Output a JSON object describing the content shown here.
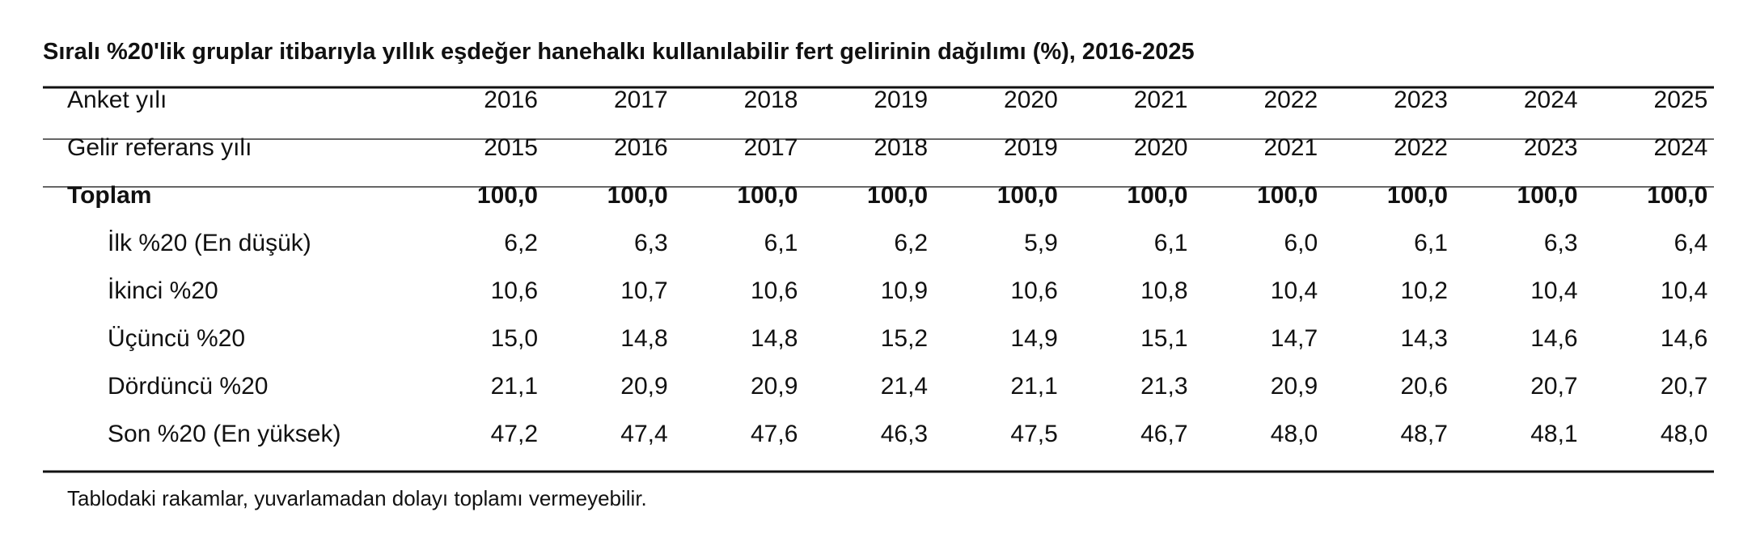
{
  "title": "Sıralı %20'lik gruplar itibarıyla yıllık eşdeğer hanehalkı kullanılabilir fert gelirinin dağılımı (%), 2016-2025",
  "table": {
    "rows": [
      {
        "label": "Anket yılı",
        "cells": [
          "2016",
          "2017",
          "2018",
          "2019",
          "2020",
          "2021",
          "2022",
          "2023",
          "2024",
          "2025"
        ]
      },
      {
        "label": "Gelir referans yılı",
        "cells": [
          "2015",
          "2016",
          "2017",
          "2018",
          "2019",
          "2020",
          "2021",
          "2022",
          "2023",
          "2024"
        ]
      },
      {
        "label": "Toplam",
        "cells": [
          "100,0",
          "100,0",
          "100,0",
          "100,0",
          "100,0",
          "100,0",
          "100,0",
          "100,0",
          "100,0",
          "100,0"
        ]
      },
      {
        "label": "İlk %20 (En düşük)",
        "cells": [
          "6,2",
          "6,3",
          "6,1",
          "6,2",
          "5,9",
          "6,1",
          "6,0",
          "6,1",
          "6,3",
          "6,4"
        ]
      },
      {
        "label": "İkinci %20",
        "cells": [
          "10,6",
          "10,7",
          "10,6",
          "10,9",
          "10,6",
          "10,8",
          "10,4",
          "10,2",
          "10,4",
          "10,4"
        ]
      },
      {
        "label": "Üçüncü %20",
        "cells": [
          "15,0",
          "14,8",
          "14,8",
          "15,2",
          "14,9",
          "15,1",
          "14,7",
          "14,3",
          "14,6",
          "14,6"
        ]
      },
      {
        "label": "Dördüncü %20",
        "cells": [
          "21,1",
          "20,9",
          "20,9",
          "21,4",
          "21,1",
          "21,3",
          "20,9",
          "20,6",
          "20,7",
          "20,7"
        ]
      },
      {
        "label": "Son %20 (En yüksek)",
        "cells": [
          "47,2",
          "47,4",
          "47,6",
          "46,3",
          "47,5",
          "46,7",
          "48,0",
          "48,7",
          "48,1",
          "48,0"
        ]
      }
    ]
  },
  "footnote": "Tablodaki rakamlar, yuvarlamadan dolayı toplamı vermeyebilir."
}
